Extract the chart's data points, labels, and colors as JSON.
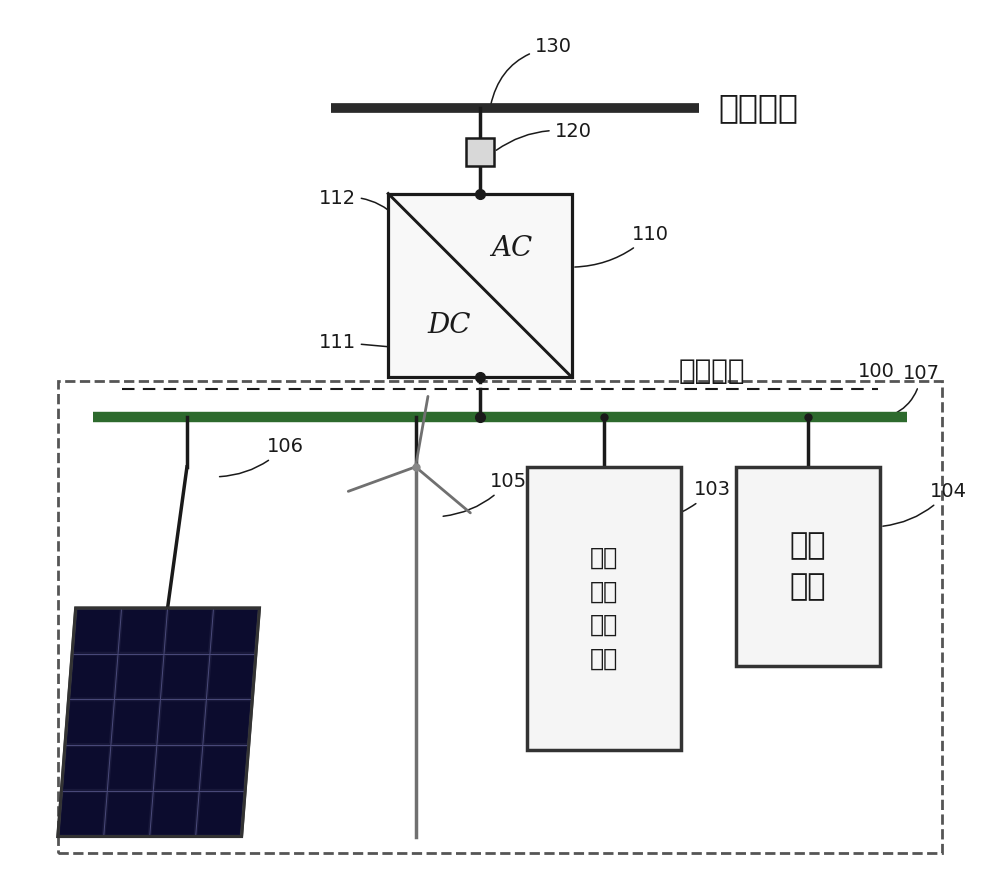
{
  "bg_color": "#ffffff",
  "dark": "#1a1a1a",
  "bus_color": "#2a2a2a",
  "green_bus": "#2d6a2d",
  "dash_color": "#666666",
  "ac_grid_label": "交流电网",
  "dc_grid_label": "直流电网",
  "flywheel_line1": "飞轮",
  "flywheel_line2": "阵列",
  "flywheel_line3": "储能",
  "flywheel_line4": "系统",
  "dc_load_line1": "直流",
  "dc_load_line2": "负荷",
  "ac_label": "AC",
  "dc_label": "DC",
  "num_130": "130",
  "num_120": "120",
  "num_112": "112",
  "num_111": "111",
  "num_110": "110",
  "num_100": "100",
  "num_107": "107",
  "num_106": "106",
  "num_105": "105",
  "num_103": "103",
  "num_104": "104"
}
